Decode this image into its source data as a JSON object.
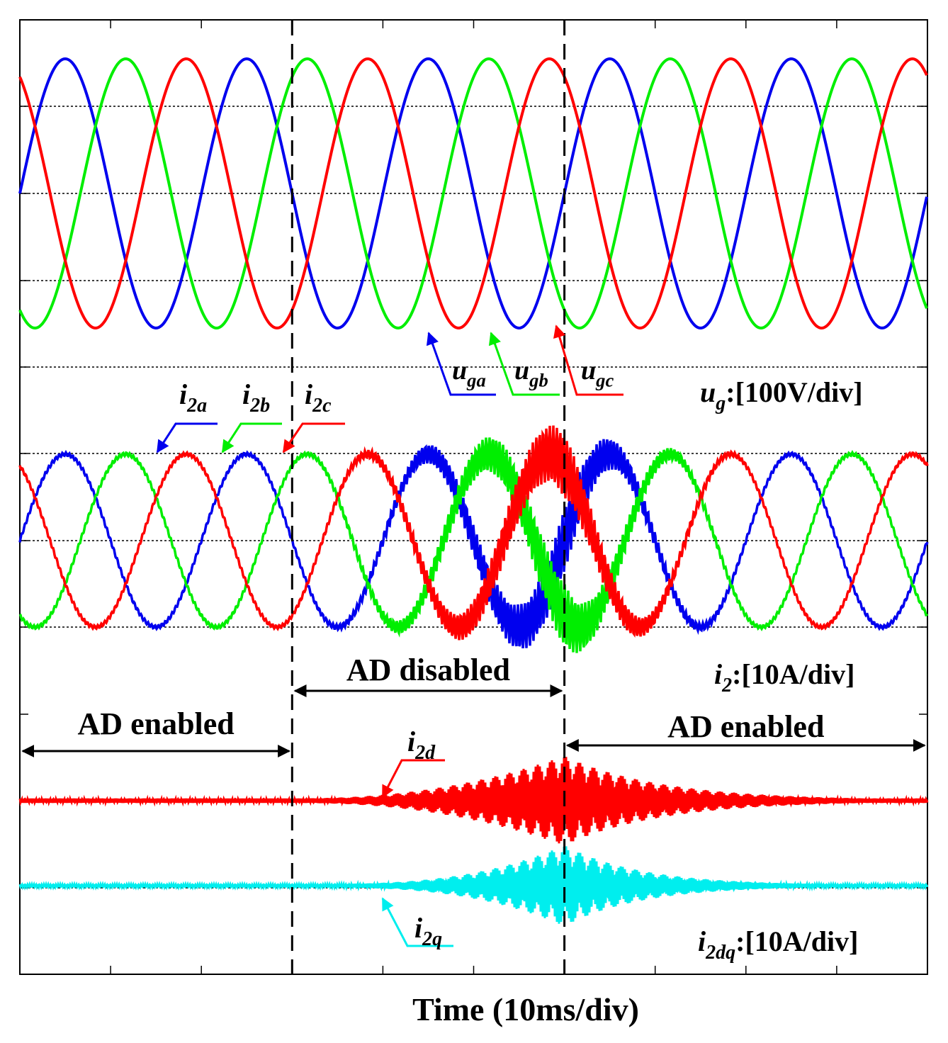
{
  "chart_data": {
    "type": "line",
    "xlabel": "Time (10ms/div)",
    "x_divisions": 10,
    "x_unit_per_div": "10ms",
    "grid": true,
    "colors": {
      "a": "#0000ee",
      "b": "#00ee00",
      "c": "#ff0000",
      "d": "#ff0000",
      "q": "#00eeee"
    },
    "panels": [
      {
        "name": "ug",
        "scale_label": {
          "var": "u",
          "sub": "g",
          "text": ":[100V/div]"
        },
        "series": [
          {
            "name": "u_ga",
            "label": {
              "var": "u",
              "sub": "ga"
            },
            "color": "#0000ee",
            "amplitude_div": 1.55,
            "phase_deg": 0
          },
          {
            "name": "u_gb",
            "label": {
              "var": "u",
              "sub": "gb"
            },
            "color": "#00ee00",
            "amplitude_div": 1.55,
            "phase_deg": 120
          },
          {
            "name": "u_gc",
            "label": {
              "var": "u",
              "sub": "gc"
            },
            "color": "#ff0000",
            "amplitude_div": 1.55,
            "phase_deg": -120
          }
        ]
      },
      {
        "name": "i2",
        "scale_label": {
          "var": "i",
          "sub": "2",
          "text": ":[10A/div]"
        },
        "series": [
          {
            "name": "i_2a",
            "label": {
              "var": "i",
              "sub": "2a"
            },
            "color": "#0000ee",
            "amplitude_div": 1.0,
            "phase_deg": 0
          },
          {
            "name": "i_2b",
            "label": {
              "var": "i",
              "sub": "2b"
            },
            "color": "#00ee00",
            "amplitude_div": 1.0,
            "phase_deg": 120
          },
          {
            "name": "i_2c",
            "label": {
              "var": "i",
              "sub": "2c"
            },
            "color": "#ff0000",
            "amplitude_div": 1.0,
            "phase_deg": -120
          }
        ]
      },
      {
        "name": "i2dq",
        "scale_label": {
          "var": "i",
          "sub": "2dq",
          "text": ":[10A/div]"
        },
        "series": [
          {
            "name": "i_2d",
            "label": {
              "var": "i",
              "sub": "2d"
            },
            "color": "#ff0000"
          },
          {
            "name": "i_2q",
            "label": {
              "var": "i",
              "sub": "2q"
            },
            "color": "#00eeee"
          }
        ]
      }
    ],
    "markers_div": [
      3,
      6
    ],
    "annotations": [
      {
        "text": "AD enabled",
        "from_div": 0,
        "to_div": 3
      },
      {
        "text": "AD disabled",
        "from_div": 3,
        "to_div": 6
      },
      {
        "text": "AD enabled",
        "from_div": 6,
        "to_div": 10
      }
    ]
  }
}
